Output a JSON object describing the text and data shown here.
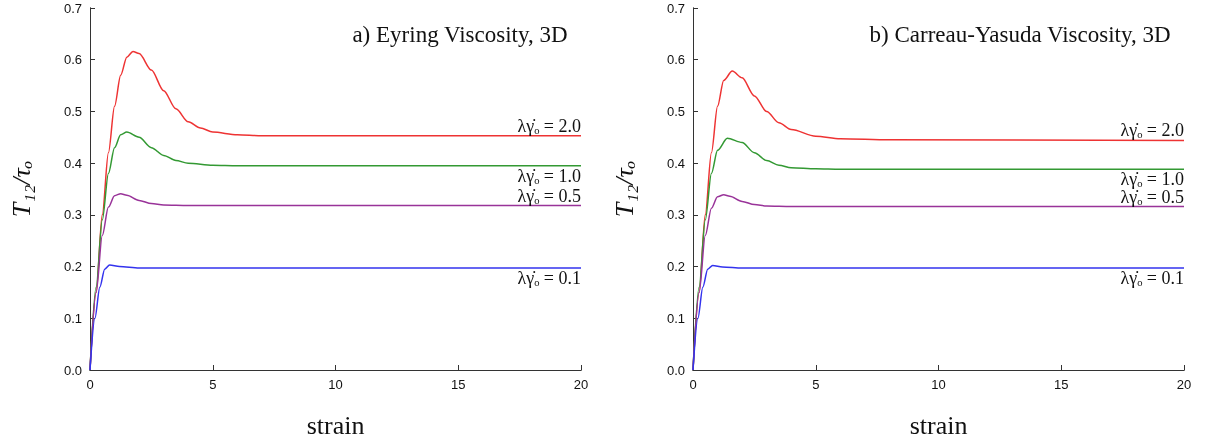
{
  "chart_data": [
    {
      "type": "line",
      "title": "a) Eyring Viscosity, 3D",
      "xlabel": "strain",
      "ylabel": "T₁₂/τₒ",
      "xlim": [
        0,
        20
      ],
      "ylim": [
        0,
        0.7
      ],
      "xticks": [
        0,
        5,
        10,
        15,
        20
      ],
      "yticks": [
        {
          "value": 0,
          "label": "0.0"
        },
        0.1,
        0.2,
        0.3,
        0.4,
        0.5,
        0.6,
        0.7
      ],
      "grid": false,
      "legend": false,
      "marker": "none",
      "line_style": "solid",
      "series": [
        {
          "name": "λγ̇ₒ = 2.0",
          "color": "#ee3333",
          "x": [
            0,
            0.25,
            0.5,
            0.75,
            1,
            1.25,
            1.5,
            1.75,
            2,
            2.5,
            3,
            3.5,
            4,
            4.5,
            5,
            6,
            7,
            20
          ],
          "values": [
            0,
            0.15,
            0.3,
            0.42,
            0.51,
            0.57,
            0.605,
            0.616,
            0.612,
            0.58,
            0.54,
            0.505,
            0.48,
            0.468,
            0.46,
            0.455,
            0.453,
            0.453
          ]
        },
        {
          "name": "λγ̇ₒ = 1.0",
          "color": "#339933",
          "x": [
            0,
            0.25,
            0.5,
            0.75,
            1,
            1.25,
            1.5,
            2,
            2.5,
            3,
            3.5,
            4,
            5,
            6,
            20
          ],
          "values": [
            0,
            0.16,
            0.29,
            0.38,
            0.43,
            0.455,
            0.46,
            0.45,
            0.43,
            0.415,
            0.405,
            0.4,
            0.396,
            0.395,
            0.395
          ]
        },
        {
          "name": "λγ̇ₒ = 0.5",
          "color": "#993399",
          "x": [
            0,
            0.25,
            0.5,
            0.75,
            1,
            1.25,
            1.5,
            2,
            2.5,
            3,
            4,
            20
          ],
          "values": [
            0,
            0.15,
            0.26,
            0.315,
            0.337,
            0.341,
            0.338,
            0.328,
            0.322,
            0.319,
            0.318,
            0.318
          ]
        },
        {
          "name": "λγ̇ₒ = 0.1",
          "color": "#3333ee",
          "x": [
            0,
            0.2,
            0.4,
            0.6,
            0.8,
            1.2,
            2,
            20
          ],
          "values": [
            0,
            0.1,
            0.16,
            0.195,
            0.203,
            0.2,
            0.197,
            0.197
          ]
        }
      ]
    },
    {
      "type": "line",
      "title": "b) Carreau-Yasuda Viscosity, 3D",
      "xlabel": "strain",
      "ylabel": "T₁₂/τₒ",
      "xlim": [
        0,
        20
      ],
      "ylim": [
        0,
        0.7
      ],
      "xticks": [
        0,
        5,
        10,
        15,
        20
      ],
      "yticks": [
        {
          "value": 0,
          "label": "0.0"
        },
        0.1,
        0.2,
        0.3,
        0.4,
        0.5,
        0.6,
        0.7
      ],
      "grid": false,
      "legend": false,
      "marker": "none",
      "line_style": "solid",
      "series": [
        {
          "name": "λγ̇ₒ = 2.0",
          "color": "#ee3333",
          "x": [
            0,
            0.25,
            0.5,
            0.75,
            1,
            1.25,
            1.6,
            2,
            2.5,
            3,
            3.5,
            4,
            5,
            6,
            8,
            20
          ],
          "values": [
            0,
            0.15,
            0.3,
            0.42,
            0.51,
            0.56,
            0.578,
            0.565,
            0.53,
            0.5,
            0.478,
            0.465,
            0.452,
            0.447,
            0.445,
            0.444
          ]
        },
        {
          "name": "λγ̇ₒ = 1.0",
          "color": "#339933",
          "x": [
            0,
            0.25,
            0.5,
            0.75,
            1,
            1.4,
            2,
            2.5,
            3,
            3.5,
            4,
            5,
            6,
            20
          ],
          "values": [
            0,
            0.16,
            0.29,
            0.38,
            0.425,
            0.448,
            0.44,
            0.42,
            0.405,
            0.396,
            0.391,
            0.389,
            0.388,
            0.388
          ]
        },
        {
          "name": "λγ̇ₒ = 0.5",
          "color": "#993399",
          "x": [
            0,
            0.25,
            0.5,
            0.75,
            1,
            1.25,
            1.5,
            2,
            2.5,
            3,
            4,
            20
          ],
          "values": [
            0,
            0.15,
            0.26,
            0.313,
            0.335,
            0.339,
            0.336,
            0.326,
            0.32,
            0.317,
            0.316,
            0.316
          ]
        },
        {
          "name": "λγ̇ₒ = 0.1",
          "color": "#3333ee",
          "x": [
            0,
            0.2,
            0.4,
            0.6,
            0.8,
            1.2,
            2,
            20
          ],
          "values": [
            0,
            0.1,
            0.16,
            0.195,
            0.202,
            0.199,
            0.197,
            0.197
          ]
        }
      ]
    }
  ]
}
